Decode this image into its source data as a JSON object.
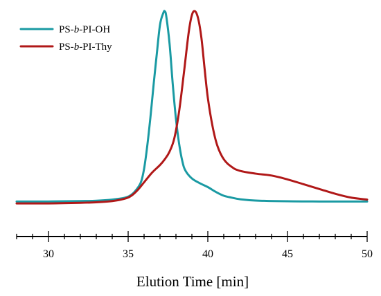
{
  "chart_data": {
    "type": "line",
    "xlabel": "Elution Time [min]",
    "ylabel": "",
    "title": "",
    "xlim": [
      28,
      50
    ],
    "ylim": [
      -0.05,
      1.03
    ],
    "x_ticks": [
      30,
      35,
      40,
      45,
      50
    ],
    "x_minor_step": 1,
    "y_axis_visible": false,
    "grid": false,
    "legend_position": "top-left",
    "series": [
      {
        "name_parts": [
          {
            "text": "PS-",
            "italic": false
          },
          {
            "text": "b",
            "italic": true
          },
          {
            "text": "-PI-OH",
            "italic": false
          }
        ],
        "name": "PS-b-PI-OH",
        "color": "#1a9aa3",
        "points": [
          [
            28,
            0.01
          ],
          [
            30,
            0.01
          ],
          [
            32,
            0.012
          ],
          [
            33,
            0.014
          ],
          [
            34,
            0.02
          ],
          [
            34.8,
            0.03
          ],
          [
            35.2,
            0.045
          ],
          [
            35.5,
            0.07
          ],
          [
            35.8,
            0.11
          ],
          [
            36.0,
            0.18
          ],
          [
            36.2,
            0.3
          ],
          [
            36.4,
            0.45
          ],
          [
            36.6,
            0.62
          ],
          [
            36.8,
            0.78
          ],
          [
            37.0,
            0.93
          ],
          [
            37.2,
            0.99
          ],
          [
            37.3,
            1.0
          ],
          [
            37.4,
            0.97
          ],
          [
            37.6,
            0.83
          ],
          [
            37.8,
            0.62
          ],
          [
            38.0,
            0.44
          ],
          [
            38.2,
            0.31
          ],
          [
            38.4,
            0.22
          ],
          [
            38.6,
            0.17
          ],
          [
            39.0,
            0.13
          ],
          [
            39.5,
            0.105
          ],
          [
            40.0,
            0.085
          ],
          [
            40.5,
            0.06
          ],
          [
            41.0,
            0.04
          ],
          [
            41.5,
            0.03
          ],
          [
            42.0,
            0.022
          ],
          [
            43.0,
            0.015
          ],
          [
            45.0,
            0.011
          ],
          [
            47.0,
            0.01
          ],
          [
            50.0,
            0.01
          ]
        ]
      },
      {
        "name_parts": [
          {
            "text": "PS-",
            "italic": false
          },
          {
            "text": "b",
            "italic": true
          },
          {
            "text": "-PI-Thy",
            "italic": false
          }
        ],
        "name": "PS-b-PI-Thy",
        "color": "#b01818",
        "points": [
          [
            28,
            0.0
          ],
          [
            30,
            0.0
          ],
          [
            32,
            0.003
          ],
          [
            33,
            0.006
          ],
          [
            34,
            0.012
          ],
          [
            34.8,
            0.025
          ],
          [
            35.2,
            0.04
          ],
          [
            35.6,
            0.07
          ],
          [
            36.0,
            0.11
          ],
          [
            36.5,
            0.16
          ],
          [
            37.0,
            0.2
          ],
          [
            37.3,
            0.23
          ],
          [
            37.6,
            0.27
          ],
          [
            37.9,
            0.34
          ],
          [
            38.2,
            0.48
          ],
          [
            38.5,
            0.68
          ],
          [
            38.8,
            0.89
          ],
          [
            39.0,
            0.98
          ],
          [
            39.2,
            1.0
          ],
          [
            39.4,
            0.96
          ],
          [
            39.6,
            0.86
          ],
          [
            39.8,
            0.7
          ],
          [
            40.0,
            0.55
          ],
          [
            40.3,
            0.4
          ],
          [
            40.6,
            0.3
          ],
          [
            41.0,
            0.23
          ],
          [
            41.5,
            0.19
          ],
          [
            42.0,
            0.17
          ],
          [
            43.0,
            0.155
          ],
          [
            44.0,
            0.145
          ],
          [
            45.0,
            0.125
          ],
          [
            46.0,
            0.1
          ],
          [
            47.0,
            0.075
          ],
          [
            48.0,
            0.05
          ],
          [
            49.0,
            0.03
          ],
          [
            50.0,
            0.02
          ]
        ]
      }
    ]
  }
}
